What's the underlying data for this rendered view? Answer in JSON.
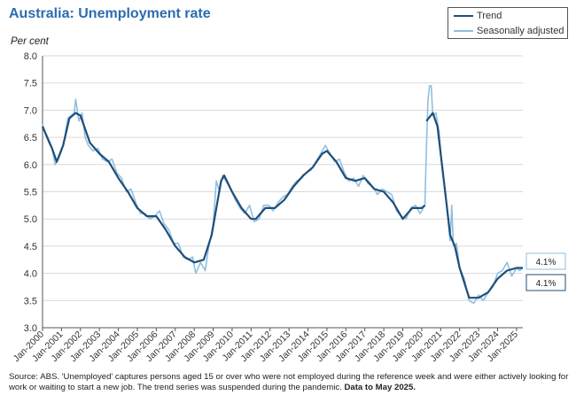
{
  "chart_data": {
    "type": "line",
    "title": "Australia: Unemployment rate",
    "ylabel": "Per cent",
    "xlabel": "",
    "ylim": [
      3.0,
      8.0
    ],
    "xlim": [
      "2000-01",
      "2025-05"
    ],
    "yticks": [
      "3.0",
      "3.5",
      "4.0",
      "4.5",
      "5.0",
      "5.5",
      "6.0",
      "6.5",
      "7.0",
      "7.5",
      "8.0"
    ],
    "xticks": [
      "Jan-2000",
      "Jan-2001",
      "Jan-2002",
      "Jan-2003",
      "Jan-2004",
      "Jan-2005",
      "Jan-2006",
      "Jan-2007",
      "Jan-2008",
      "Jan-2009",
      "Jan-2010",
      "Jan-2011",
      "Jan-2012",
      "Jan-2013",
      "Jan-2014",
      "Jan-2015",
      "Jan-2016",
      "Jan-2017",
      "Jan-2018",
      "Jan-2019",
      "Jan-2020",
      "Jan-2021",
      "Jan-2022",
      "Jan-2023",
      "Jan-2024",
      "Jan-2025"
    ],
    "grid": "horizontal",
    "legend_position": "top-right",
    "series": [
      {
        "name": "Trend",
        "color": "#1f4e79",
        "points": [
          [
            "2000-01",
            6.7
          ],
          [
            "2000-07",
            6.3
          ],
          [
            "2000-10",
            6.05
          ],
          [
            "2001-02",
            6.35
          ],
          [
            "2001-06",
            6.85
          ],
          [
            "2001-10",
            6.95
          ],
          [
            "2002-01",
            6.9
          ],
          [
            "2002-07",
            6.4
          ],
          [
            "2003-01",
            6.2
          ],
          [
            "2003-07",
            6.05
          ],
          [
            "2004-01",
            5.75
          ],
          [
            "2004-07",
            5.5
          ],
          [
            "2005-01",
            5.2
          ],
          [
            "2005-07",
            5.05
          ],
          [
            "2006-01",
            5.05
          ],
          [
            "2006-07",
            4.8
          ],
          [
            "2007-01",
            4.5
          ],
          [
            "2007-07",
            4.3
          ],
          [
            "2008-01",
            4.2
          ],
          [
            "2008-07",
            4.25
          ],
          [
            "2008-12",
            4.7
          ],
          [
            "2009-06",
            5.7
          ],
          [
            "2009-08",
            5.8
          ],
          [
            "2010-01",
            5.5
          ],
          [
            "2010-07",
            5.2
          ],
          [
            "2011-01",
            5.0
          ],
          [
            "2011-04",
            5.0
          ],
          [
            "2011-10",
            5.2
          ],
          [
            "2012-04",
            5.2
          ],
          [
            "2012-10",
            5.35
          ],
          [
            "2013-04",
            5.6
          ],
          [
            "2013-10",
            5.8
          ],
          [
            "2014-04",
            5.95
          ],
          [
            "2014-10",
            6.2
          ],
          [
            "2015-01",
            6.25
          ],
          [
            "2015-07",
            6.05
          ],
          [
            "2016-01",
            5.75
          ],
          [
            "2016-07",
            5.7
          ],
          [
            "2017-01",
            5.75
          ],
          [
            "2017-07",
            5.55
          ],
          [
            "2018-01",
            5.5
          ],
          [
            "2018-07",
            5.3
          ],
          [
            "2019-01",
            5.0
          ],
          [
            "2019-07",
            5.2
          ],
          [
            "2020-01",
            5.2
          ],
          [
            "2020-03",
            5.25
          ]
        ]
      },
      {
        "name": "Trend",
        "color": "#1f4e79",
        "points": [
          [
            "2020-04",
            6.8
          ],
          [
            "2020-08",
            6.95
          ],
          [
            "2020-11",
            6.7
          ],
          [
            "2021-03",
            5.7
          ],
          [
            "2021-07",
            4.7
          ],
          [
            "2021-10",
            4.5
          ],
          [
            "2022-01",
            4.1
          ],
          [
            "2022-07",
            3.55
          ],
          [
            "2023-01",
            3.55
          ],
          [
            "2023-07",
            3.65
          ],
          [
            "2024-01",
            3.9
          ],
          [
            "2024-07",
            4.05
          ],
          [
            "2025-01",
            4.1
          ],
          [
            "2025-05",
            4.1
          ]
        ]
      },
      {
        "name": "Seasonally adjusted",
        "color": "#8fbfe0",
        "points": [
          [
            "2000-01",
            6.75
          ],
          [
            "2000-03",
            6.55
          ],
          [
            "2000-05",
            6.4
          ],
          [
            "2000-07",
            6.3
          ],
          [
            "2000-09",
            6.0
          ],
          [
            "2000-11",
            6.1
          ],
          [
            "2001-01",
            6.25
          ],
          [
            "2001-03",
            6.5
          ],
          [
            "2001-05",
            6.85
          ],
          [
            "2001-07",
            6.9
          ],
          [
            "2001-09",
            6.95
          ],
          [
            "2001-10",
            7.2
          ],
          [
            "2001-12",
            6.8
          ],
          [
            "2002-02",
            6.95
          ],
          [
            "2002-04",
            6.5
          ],
          [
            "2002-06",
            6.35
          ],
          [
            "2002-09",
            6.25
          ],
          [
            "2002-12",
            6.3
          ],
          [
            "2003-03",
            6.1
          ],
          [
            "2003-06",
            6.05
          ],
          [
            "2003-09",
            6.1
          ],
          [
            "2003-12",
            5.85
          ],
          [
            "2004-03",
            5.75
          ],
          [
            "2004-06",
            5.5
          ],
          [
            "2004-09",
            5.55
          ],
          [
            "2004-12",
            5.3
          ],
          [
            "2005-03",
            5.1
          ],
          [
            "2005-06",
            5.1
          ],
          [
            "2005-09",
            5.0
          ],
          [
            "2005-12",
            5.05
          ],
          [
            "2006-03",
            5.15
          ],
          [
            "2006-06",
            4.9
          ],
          [
            "2006-09",
            4.8
          ],
          [
            "2006-12",
            4.55
          ],
          [
            "2007-03",
            4.55
          ],
          [
            "2007-06",
            4.3
          ],
          [
            "2007-09",
            4.25
          ],
          [
            "2007-12",
            4.3
          ],
          [
            "2008-02",
            4.0
          ],
          [
            "2008-05",
            4.2
          ],
          [
            "2008-08",
            4.05
          ],
          [
            "2008-10",
            4.45
          ],
          [
            "2009-01",
            4.9
          ],
          [
            "2009-03",
            5.7
          ],
          [
            "2009-05",
            5.5
          ],
          [
            "2009-07",
            5.8
          ],
          [
            "2009-09",
            5.7
          ],
          [
            "2009-12",
            5.55
          ],
          [
            "2010-03",
            5.35
          ],
          [
            "2010-06",
            5.2
          ],
          [
            "2010-09",
            5.1
          ],
          [
            "2010-12",
            5.25
          ],
          [
            "2011-03",
            4.95
          ],
          [
            "2011-06",
            5.0
          ],
          [
            "2011-09",
            5.25
          ],
          [
            "2011-12",
            5.25
          ],
          [
            "2012-03",
            5.15
          ],
          [
            "2012-06",
            5.3
          ],
          [
            "2012-09",
            5.4
          ],
          [
            "2012-12",
            5.45
          ],
          [
            "2013-03",
            5.6
          ],
          [
            "2013-06",
            5.7
          ],
          [
            "2013-09",
            5.75
          ],
          [
            "2013-12",
            5.85
          ],
          [
            "2014-03",
            5.9
          ],
          [
            "2014-06",
            6.05
          ],
          [
            "2014-09",
            6.2
          ],
          [
            "2014-12",
            6.35
          ],
          [
            "2015-03",
            6.2
          ],
          [
            "2015-06",
            6.05
          ],
          [
            "2015-09",
            6.1
          ],
          [
            "2015-12",
            5.85
          ],
          [
            "2016-03",
            5.7
          ],
          [
            "2016-06",
            5.75
          ],
          [
            "2016-09",
            5.6
          ],
          [
            "2016-12",
            5.8
          ],
          [
            "2017-03",
            5.65
          ],
          [
            "2017-06",
            5.6
          ],
          [
            "2017-09",
            5.45
          ],
          [
            "2017-12",
            5.55
          ],
          [
            "2018-03",
            5.5
          ],
          [
            "2018-06",
            5.45
          ],
          [
            "2018-09",
            5.15
          ],
          [
            "2018-12",
            5.05
          ],
          [
            "2019-03",
            5.0
          ],
          [
            "2019-06",
            5.2
          ],
          [
            "2019-09",
            5.25
          ],
          [
            "2019-12",
            5.1
          ],
          [
            "2020-02",
            5.2
          ],
          [
            "2020-03",
            5.25
          ],
          [
            "2020-04",
            6.3
          ],
          [
            "2020-05",
            7.2
          ],
          [
            "2020-06",
            7.45
          ],
          [
            "2020-07",
            7.45
          ],
          [
            "2020-08",
            6.9
          ],
          [
            "2020-10",
            6.95
          ],
          [
            "2020-12",
            6.6
          ],
          [
            "2021-02",
            5.9
          ],
          [
            "2021-04",
            5.5
          ],
          [
            "2021-06",
            4.9
          ],
          [
            "2021-07",
            4.6
          ],
          [
            "2021-08",
            5.25
          ],
          [
            "2021-09",
            4.5
          ],
          [
            "2021-11",
            4.55
          ],
          [
            "2022-01",
            4.1
          ],
          [
            "2022-04",
            3.9
          ],
          [
            "2022-07",
            3.5
          ],
          [
            "2022-10",
            3.45
          ],
          [
            "2023-01",
            3.6
          ],
          [
            "2023-04",
            3.5
          ],
          [
            "2023-07",
            3.65
          ],
          [
            "2023-10",
            3.75
          ],
          [
            "2024-01",
            4.0
          ],
          [
            "2024-04",
            4.05
          ],
          [
            "2024-07",
            4.2
          ],
          [
            "2024-10",
            3.95
          ],
          [
            "2025-01",
            4.1
          ],
          [
            "2025-03",
            4.05
          ],
          [
            "2025-05",
            4.1
          ]
        ]
      }
    ],
    "end_labels": [
      {
        "series": "Seasonally adjusted",
        "text": "4.1%"
      },
      {
        "series": "Trend",
        "text": "4.1%"
      }
    ]
  },
  "legend": {
    "trend": {
      "label": "Trend",
      "color": "#1f4e79"
    },
    "sa": {
      "label": "Seasonally adjusted",
      "color": "#8fbfe0"
    }
  },
  "note": {
    "text": "Source: ABS. 'Unemployed' captures persons aged 15 or over who were not employed during the reference week and were either actively looking for work or waiting to start a new job. The trend series was suspended during the pandemic.",
    "emphasis": "Data to May 2025."
  },
  "colors": {
    "title": "#2b6cb0",
    "grid": "#d9d9d9",
    "axis": "#555555",
    "label_box_border": "#8fbfe0",
    "label_box_border_trend": "#1f4e79"
  }
}
